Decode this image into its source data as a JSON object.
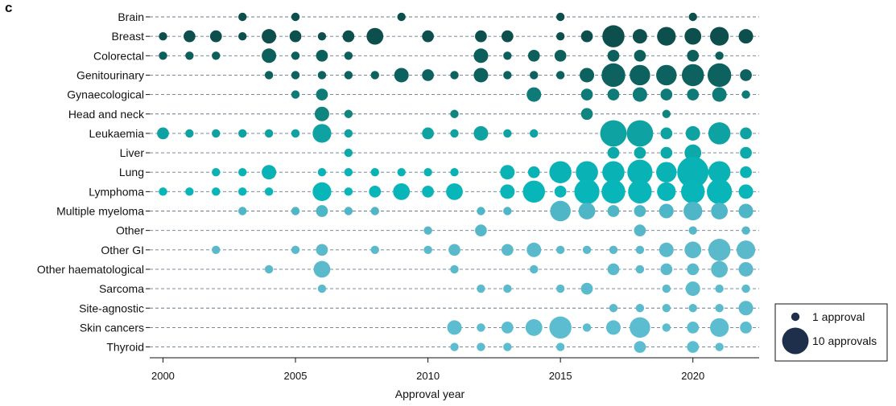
{
  "panel_label": "c",
  "chart_data": {
    "type": "scatter",
    "xlabel": "Approval year",
    "xlim": [
      1999.5,
      2022.5
    ],
    "x_ticks": [
      2000,
      2005,
      2010,
      2015,
      2020
    ],
    "categories": [
      "Brain",
      "Breast",
      "Colorectal",
      "Genitourinary",
      "Gynaecological",
      "Head and neck",
      "Leukaemia",
      "Liver",
      "Lung",
      "Lymphoma",
      "Multiple myeloma",
      "Other",
      "Other GI",
      "Other haematological",
      "Sarcoma",
      "Site-agnostic",
      "Skin cancers",
      "Thyroid"
    ],
    "category_colors": [
      "#0d4f4d",
      "#0d4f4d",
      "#0d5f5c",
      "#0d615e",
      "#0e7b78",
      "#108580",
      "#0ea2a2",
      "#0ba9aa",
      "#08b2b5",
      "#08b5b8",
      "#4eb6c6",
      "#56b7c8",
      "#5ab9cb",
      "#5abacc",
      "#5bbbcd",
      "#5bbbcd",
      "#5bbdcf",
      "#5bbdcf"
    ],
    "series": [
      {
        "category": "Brain",
        "points": [
          [
            2003,
            1
          ],
          [
            2005,
            1
          ],
          [
            2009,
            1
          ],
          [
            2015,
            1
          ],
          [
            2020,
            1
          ]
        ]
      },
      {
        "category": "Breast",
        "points": [
          [
            2000,
            1
          ],
          [
            2001,
            2
          ],
          [
            2002,
            2
          ],
          [
            2003,
            1
          ],
          [
            2004,
            3
          ],
          [
            2005,
            2
          ],
          [
            2006,
            1
          ],
          [
            2007,
            2
          ],
          [
            2008,
            4
          ],
          [
            2010,
            2
          ],
          [
            2012,
            2
          ],
          [
            2013,
            2
          ],
          [
            2015,
            1
          ],
          [
            2016,
            2
          ],
          [
            2017,
            7
          ],
          [
            2018,
            3
          ],
          [
            2019,
            5
          ],
          [
            2020,
            4
          ],
          [
            2021,
            5
          ],
          [
            2022,
            3
          ]
        ]
      },
      {
        "category": "Colorectal",
        "points": [
          [
            2000,
            1
          ],
          [
            2001,
            1
          ],
          [
            2002,
            1
          ],
          [
            2004,
            3
          ],
          [
            2005,
            1
          ],
          [
            2006,
            2
          ],
          [
            2007,
            1
          ],
          [
            2012,
            3
          ],
          [
            2013,
            1
          ],
          [
            2014,
            2
          ],
          [
            2015,
            2
          ],
          [
            2017,
            2
          ],
          [
            2018,
            2
          ],
          [
            2020,
            2
          ],
          [
            2021,
            1
          ]
        ]
      },
      {
        "category": "Genitourinary",
        "points": [
          [
            2004,
            1
          ],
          [
            2005,
            1
          ],
          [
            2006,
            1
          ],
          [
            2007,
            1
          ],
          [
            2008,
            1
          ],
          [
            2009,
            3
          ],
          [
            2010,
            2
          ],
          [
            2011,
            1
          ],
          [
            2012,
            3
          ],
          [
            2013,
            1
          ],
          [
            2014,
            1
          ],
          [
            2015,
            1
          ],
          [
            2016,
            3
          ],
          [
            2017,
            8
          ],
          [
            2018,
            6
          ],
          [
            2019,
            6
          ],
          [
            2020,
            7
          ],
          [
            2021,
            8
          ],
          [
            2022,
            2
          ]
        ]
      },
      {
        "category": "Gynaecological",
        "points": [
          [
            2005,
            1
          ],
          [
            2006,
            2
          ],
          [
            2014,
            3
          ],
          [
            2016,
            2
          ],
          [
            2017,
            2
          ],
          [
            2018,
            3
          ],
          [
            2019,
            2
          ],
          [
            2020,
            2
          ],
          [
            2021,
            3
          ],
          [
            2022,
            1
          ]
        ]
      },
      {
        "category": "Head and neck",
        "points": [
          [
            2006,
            3
          ],
          [
            2007,
            1
          ],
          [
            2011,
            1
          ],
          [
            2016,
            2
          ],
          [
            2019,
            1
          ]
        ]
      },
      {
        "category": "Leukaemia",
        "points": [
          [
            2000,
            2
          ],
          [
            2001,
            1
          ],
          [
            2002,
            1
          ],
          [
            2003,
            1
          ],
          [
            2004,
            1
          ],
          [
            2005,
            1
          ],
          [
            2006,
            5
          ],
          [
            2007,
            1
          ],
          [
            2010,
            2
          ],
          [
            2011,
            1
          ],
          [
            2012,
            3
          ],
          [
            2013,
            1
          ],
          [
            2014,
            1
          ],
          [
            2017,
            10
          ],
          [
            2018,
            10
          ],
          [
            2019,
            2
          ],
          [
            2020,
            3
          ],
          [
            2021,
            7
          ],
          [
            2022,
            2
          ]
        ]
      },
      {
        "category": "Liver",
        "points": [
          [
            2007,
            1
          ],
          [
            2017,
            2
          ],
          [
            2018,
            2
          ],
          [
            2019,
            2
          ],
          [
            2020,
            4
          ],
          [
            2022,
            2
          ]
        ]
      },
      {
        "category": "Lung",
        "points": [
          [
            2002,
            1
          ],
          [
            2003,
            1
          ],
          [
            2004,
            3
          ],
          [
            2006,
            1
          ],
          [
            2007,
            1
          ],
          [
            2008,
            1
          ],
          [
            2009,
            1
          ],
          [
            2010,
            1
          ],
          [
            2011,
            1
          ],
          [
            2013,
            3
          ],
          [
            2014,
            2
          ],
          [
            2015,
            7
          ],
          [
            2016,
            7
          ],
          [
            2017,
            7
          ],
          [
            2018,
            9
          ],
          [
            2019,
            6
          ],
          [
            2020,
            14
          ],
          [
            2021,
            7
          ],
          [
            2022,
            2
          ]
        ]
      },
      {
        "category": "Lymphoma",
        "points": [
          [
            2000,
            1
          ],
          [
            2001,
            1
          ],
          [
            2002,
            1
          ],
          [
            2003,
            1
          ],
          [
            2004,
            1
          ],
          [
            2006,
            5
          ],
          [
            2007,
            1
          ],
          [
            2008,
            2
          ],
          [
            2009,
            4
          ],
          [
            2010,
            2
          ],
          [
            2011,
            4
          ],
          [
            2013,
            3
          ],
          [
            2014,
            7
          ],
          [
            2015,
            2
          ],
          [
            2016,
            9
          ],
          [
            2017,
            8
          ],
          [
            2018,
            8
          ],
          [
            2019,
            5
          ],
          [
            2020,
            8
          ],
          [
            2021,
            9
          ],
          [
            2022,
            3
          ]
        ]
      },
      {
        "category": "Multiple myeloma",
        "points": [
          [
            2003,
            1
          ],
          [
            2005,
            1
          ],
          [
            2006,
            2
          ],
          [
            2007,
            1
          ],
          [
            2008,
            1
          ],
          [
            2012,
            1
          ],
          [
            2013,
            1
          ],
          [
            2015,
            6
          ],
          [
            2016,
            4
          ],
          [
            2017,
            2
          ],
          [
            2018,
            2
          ],
          [
            2019,
            3
          ],
          [
            2020,
            5
          ],
          [
            2021,
            4
          ],
          [
            2022,
            3
          ]
        ]
      },
      {
        "category": "Other",
        "points": [
          [
            2010,
            1
          ],
          [
            2012,
            2
          ],
          [
            2018,
            2
          ],
          [
            2020,
            1
          ],
          [
            2022,
            1
          ]
        ]
      },
      {
        "category": "Other GI",
        "points": [
          [
            2002,
            1
          ],
          [
            2005,
            1
          ],
          [
            2006,
            2
          ],
          [
            2008,
            1
          ],
          [
            2010,
            1
          ],
          [
            2011,
            2
          ],
          [
            2013,
            2
          ],
          [
            2014,
            3
          ],
          [
            2015,
            1
          ],
          [
            2016,
            1
          ],
          [
            2017,
            1
          ],
          [
            2018,
            1
          ],
          [
            2019,
            3
          ],
          [
            2020,
            4
          ],
          [
            2021,
            7
          ],
          [
            2022,
            5
          ]
        ]
      },
      {
        "category": "Other haematological",
        "points": [
          [
            2004,
            1
          ],
          [
            2006,
            4
          ],
          [
            2011,
            1
          ],
          [
            2014,
            1
          ],
          [
            2017,
            2
          ],
          [
            2018,
            1
          ],
          [
            2019,
            2
          ],
          [
            2020,
            2
          ],
          [
            2021,
            4
          ],
          [
            2022,
            3
          ]
        ]
      },
      {
        "category": "Sarcoma",
        "points": [
          [
            2006,
            1
          ],
          [
            2012,
            1
          ],
          [
            2013,
            1
          ],
          [
            2015,
            1
          ],
          [
            2016,
            2
          ],
          [
            2019,
            1
          ],
          [
            2020,
            3
          ],
          [
            2021,
            1
          ],
          [
            2022,
            1
          ]
        ]
      },
      {
        "category": "Site-agnostic",
        "points": [
          [
            2017,
            1
          ],
          [
            2018,
            1
          ],
          [
            2019,
            1
          ],
          [
            2020,
            1
          ],
          [
            2021,
            1
          ],
          [
            2022,
            3
          ]
        ]
      },
      {
        "category": "Skin cancers",
        "points": [
          [
            2011,
            3
          ],
          [
            2012,
            1
          ],
          [
            2013,
            2
          ],
          [
            2014,
            4
          ],
          [
            2015,
            7
          ],
          [
            2016,
            1
          ],
          [
            2017,
            3
          ],
          [
            2018,
            6
          ],
          [
            2019,
            1
          ],
          [
            2020,
            2
          ],
          [
            2021,
            5
          ],
          [
            2022,
            2
          ]
        ]
      },
      {
        "category": "Thyroid",
        "points": [
          [
            2011,
            1
          ],
          [
            2012,
            1
          ],
          [
            2013,
            1
          ],
          [
            2015,
            1
          ],
          [
            2018,
            2
          ],
          [
            2020,
            2
          ],
          [
            2021,
            1
          ]
        ]
      }
    ],
    "grid": "horizontal dashed",
    "legend": {
      "placement": "right",
      "color": "#1d2f4a",
      "items": [
        {
          "label": "1 approval",
          "value": 1
        },
        {
          "label": "10 approvals",
          "value": 10
        }
      ]
    }
  }
}
